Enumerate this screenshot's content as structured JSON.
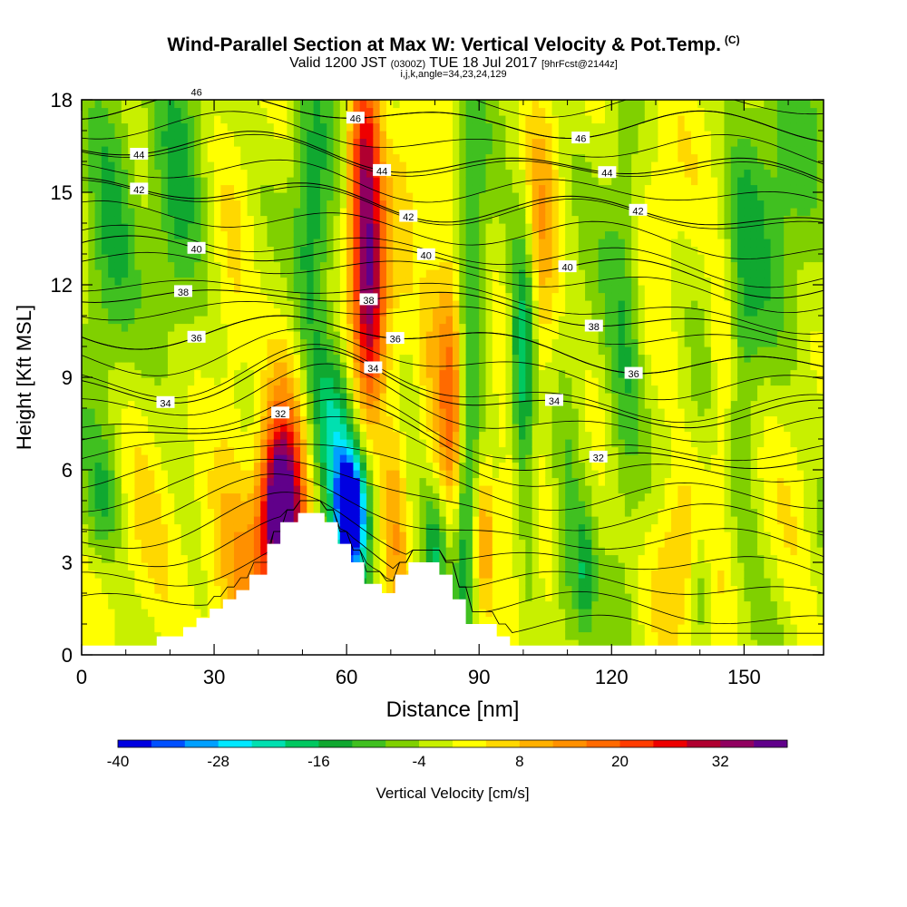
{
  "header": {
    "title": "Wind-Parallel Section at Max W: Vertical Velocity & Pot.Temp.",
    "title_mark": "(C)",
    "valid_prefix": "Valid 1200 JST",
    "valid_utc": "(0300Z)",
    "valid_date": "TUE 18 Jul 2017",
    "forecast_tag": "[9hrFcst@2144z]",
    "indices": "i,j,k,angle=34,23,24,129"
  },
  "chart_data": {
    "type": "heatmap",
    "title": "Wind-Parallel Section at Max W: Vertical Velocity & Pot.Temp.",
    "xlabel": "Distance [nm]",
    "ylabel": "Height [Kft MSL]",
    "xlim": [
      0,
      168
    ],
    "ylim": [
      0,
      18
    ],
    "xticks": [
      0,
      30,
      60,
      90,
      120,
      150
    ],
    "yticks": [
      0,
      3,
      6,
      9,
      12,
      15,
      18
    ],
    "colorbar": {
      "label": "Vertical Velocity [cm/s]",
      "min": -40,
      "max": 40,
      "step": 4,
      "tick_values": [
        -40,
        -28,
        -16,
        -4,
        8,
        20,
        32
      ],
      "colors": [
        "#0000e0",
        "#0050ff",
        "#00a0ff",
        "#00e8ff",
        "#00e0b0",
        "#00c860",
        "#10a830",
        "#40c020",
        "#80d000",
        "#c8f000",
        "#ffff00",
        "#ffd800",
        "#ffb000",
        "#ff9000",
        "#ff6a00",
        "#ff3c00",
        "#ee0000",
        "#b00030",
        "#900060",
        "#60008a"
      ]
    },
    "background_value": -2,
    "vv_features": [
      {
        "x": 45,
        "y": 4.6,
        "sx": 3.0,
        "sy": 1.8,
        "v": 40
      },
      {
        "x": 47,
        "y": 7.5,
        "sx": 4.0,
        "sy": 3.5,
        "v": 12
      },
      {
        "x": 40,
        "y": 2.5,
        "sx": 6.0,
        "sy": 2.5,
        "v": 10
      },
      {
        "x": 22,
        "y": 3.5,
        "sx": 10.0,
        "sy": 3.0,
        "v": 6
      },
      {
        "x": 61,
        "y": 4.6,
        "sx": 2.5,
        "sy": 1.5,
        "v": -45
      },
      {
        "x": 57,
        "y": 7.5,
        "sx": 3.0,
        "sy": 2.0,
        "v": -18
      },
      {
        "x": 64,
        "y": 15.0,
        "sx": 2.5,
        "sy": 3.5,
        "v": 30
      },
      {
        "x": 66,
        "y": 11.0,
        "sx": 2.5,
        "sy": 2.5,
        "v": 24
      },
      {
        "x": 52,
        "y": 13.0,
        "sx": 3.0,
        "sy": 4.0,
        "v": -14
      },
      {
        "x": 71,
        "y": 5.0,
        "sx": 2.0,
        "sy": 3.0,
        "v": 12
      },
      {
        "x": 84,
        "y": 9.0,
        "sx": 2.0,
        "sy": 3.0,
        "v": 20
      },
      {
        "x": 80,
        "y": 11.0,
        "sx": 2.5,
        "sy": 3.0,
        "v": 10
      },
      {
        "x": 87,
        "y": 4.0,
        "sx": 2.0,
        "sy": 2.5,
        "v": -16
      },
      {
        "x": 80,
        "y": 3.5,
        "sx": 2.0,
        "sy": 1.5,
        "v": -14
      },
      {
        "x": 88,
        "y": 12.0,
        "sx": 2.5,
        "sy": 4.0,
        "v": -12
      },
      {
        "x": 91,
        "y": 4.0,
        "sx": 2.0,
        "sy": 2.0,
        "v": 16
      },
      {
        "x": 100,
        "y": 9.5,
        "sx": 2.0,
        "sy": 3.0,
        "v": -20
      },
      {
        "x": 97,
        "y": 4.0,
        "sx": 2.0,
        "sy": 2.5,
        "v": 10
      },
      {
        "x": 104,
        "y": 12.5,
        "sx": 2.5,
        "sy": 4.0,
        "v": 12
      },
      {
        "x": 110,
        "y": 3.0,
        "sx": 2.0,
        "sy": 2.5,
        "v": -10
      },
      {
        "x": 114,
        "y": 2.5,
        "sx": 1.5,
        "sy": 1.5,
        "v": -14
      },
      {
        "x": 123,
        "y": 10.0,
        "sx": 3.0,
        "sy": 5.0,
        "v": -10
      },
      {
        "x": 135,
        "y": 3.0,
        "sx": 5.0,
        "sy": 2.0,
        "v": 14
      },
      {
        "x": 140,
        "y": 2.5,
        "sx": 2.0,
        "sy": 1.5,
        "v": -12
      },
      {
        "x": 145,
        "y": 9.0,
        "sx": 2.0,
        "sy": 2.5,
        "v": 10
      },
      {
        "x": 150,
        "y": 11.0,
        "sx": 3.0,
        "sy": 5.0,
        "v": -8
      },
      {
        "x": 162,
        "y": 5.0,
        "sx": 4.0,
        "sy": 3.0,
        "v": 6
      },
      {
        "x": 22,
        "y": 14.0,
        "sx": 4.0,
        "sy": 4.0,
        "v": -10
      },
      {
        "x": 6,
        "y": 15.0,
        "sx": 4.0,
        "sy": 4.0,
        "v": -10
      },
      {
        "x": 160,
        "y": 14.0,
        "sx": 6.0,
        "sy": 4.0,
        "v": -8
      },
      {
        "x": 5,
        "y": 5.0,
        "sx": 3.0,
        "sy": 1.5,
        "v": -10
      },
      {
        "x": 74,
        "y": 15.0,
        "sx": 3.0,
        "sy": 3.0,
        "v": 6
      },
      {
        "x": 34,
        "y": 9.0,
        "sx": 3.0,
        "sy": 4.0,
        "v": 6
      },
      {
        "x": 130,
        "y": 16.0,
        "sx": 5.0,
        "sy": 3.0,
        "v": 6
      }
    ],
    "terrain": [
      [
        0,
        0.3
      ],
      [
        17,
        0.3
      ],
      [
        17,
        0.6
      ],
      [
        23,
        0.6
      ],
      [
        23,
        0.9
      ],
      [
        26,
        0.9
      ],
      [
        26,
        1.2
      ],
      [
        29,
        1.2
      ],
      [
        29,
        1.5
      ],
      [
        32,
        1.5
      ],
      [
        32,
        1.8
      ],
      [
        35,
        1.8
      ],
      [
        35,
        2.1
      ],
      [
        38,
        2.1
      ],
      [
        38,
        2.6
      ],
      [
        42,
        2.6
      ],
      [
        42,
        3.6
      ],
      [
        45,
        3.6
      ],
      [
        45,
        4.3
      ],
      [
        49,
        4.3
      ],
      [
        49,
        4.6
      ],
      [
        55,
        4.6
      ],
      [
        55,
        4.3
      ],
      [
        58,
        4.3
      ],
      [
        58,
        3.6
      ],
      [
        61,
        3.6
      ],
      [
        61,
        3.0
      ],
      [
        64,
        3.0
      ],
      [
        64,
        2.3
      ],
      [
        68,
        2.3
      ],
      [
        68,
        2.0
      ],
      [
        71,
        2.0
      ],
      [
        71,
        2.6
      ],
      [
        74,
        2.6
      ],
      [
        74,
        3.0
      ],
      [
        81,
        3.0
      ],
      [
        81,
        2.6
      ],
      [
        84,
        2.6
      ],
      [
        84,
        1.8
      ],
      [
        87,
        1.8
      ],
      [
        87,
        1.0
      ],
      [
        94,
        1.0
      ],
      [
        94,
        0.6
      ],
      [
        97,
        0.6
      ],
      [
        97,
        0.3
      ],
      [
        168,
        0.3
      ]
    ],
    "theta_contours": [
      {
        "value": 46,
        "base": 17.4,
        "label_x": 26
      },
      {
        "value": 46,
        "base": 17.4,
        "label_x": 62
      },
      {
        "value": 46,
        "base": 17.4,
        "label_x": 113
      },
      {
        "value": 44,
        "base": 16.0,
        "label_x": 13
      },
      {
        "value": 44,
        "base": 16.0,
        "label_x": 68
      },
      {
        "value": 44,
        "base": 16.0,
        "label_x": 119
      },
      {
        "value": 42,
        "base": 14.5,
        "label_x": 13
      },
      {
        "value": 42,
        "base": 14.5,
        "label_x": 74
      },
      {
        "value": 42,
        "base": 14.5,
        "label_x": 126
      },
      {
        "value": 40,
        "base": 12.6,
        "label_x": 26
      },
      {
        "value": 40,
        "base": 12.6,
        "label_x": 78
      },
      {
        "value": 40,
        "base": 12.6,
        "label_x": 110
      },
      {
        "value": 38,
        "base": 11.1,
        "label_x": 23
      },
      {
        "value": 38,
        "base": 11.1,
        "label_x": 65
      },
      {
        "value": 38,
        "base": 11.1,
        "label_x": 116
      },
      {
        "value": 36,
        "base": 9.9,
        "label_x": 26
      },
      {
        "value": 36,
        "base": 9.9,
        "label_x": 71
      },
      {
        "value": 36,
        "base": 9.9,
        "label_x": 125
      },
      {
        "value": 34,
        "base": 8.2,
        "label_x": 19
      },
      {
        "value": 34,
        "base": 8.2,
        "label_x": 66
      },
      {
        "value": 34,
        "base": 8.2,
        "label_x": 107
      },
      {
        "value": 32,
        "base": 6.6,
        "label_x": 45
      },
      {
        "value": 32,
        "base": 6.6,
        "label_x": 117
      }
    ]
  }
}
